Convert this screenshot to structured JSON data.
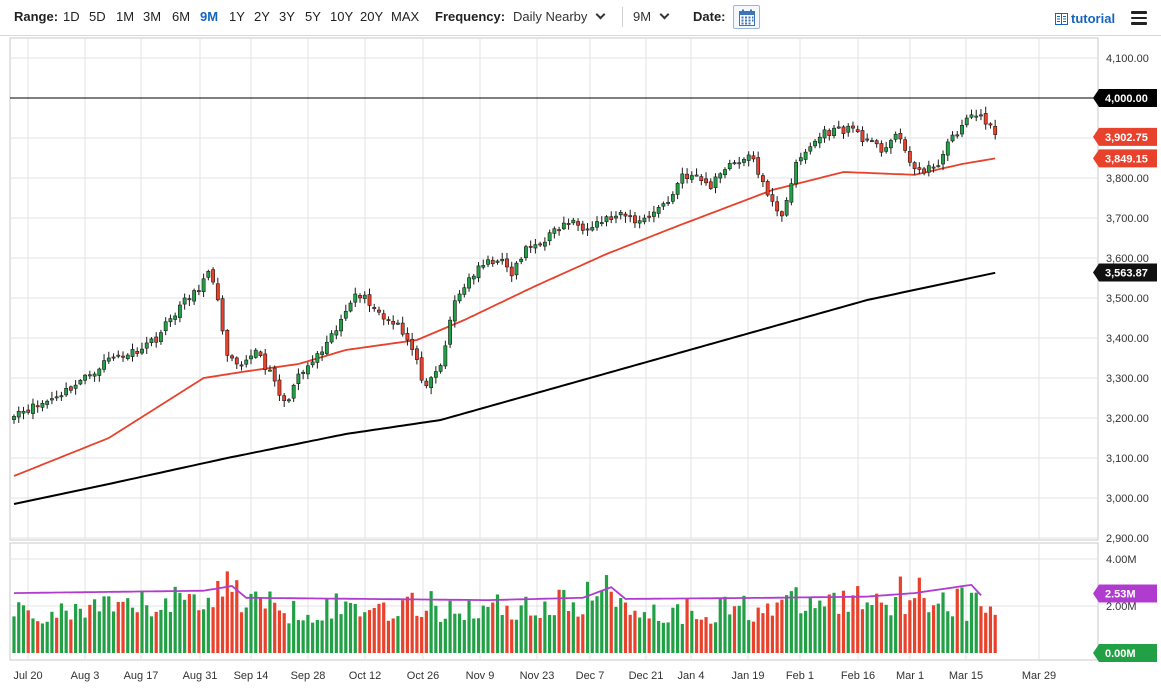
{
  "toolbar": {
    "range_label": "Range:",
    "ranges": [
      "1D",
      "5D",
      "1M",
      "3M",
      "6M",
      "9M",
      "1Y",
      "2Y",
      "3Y",
      "5Y",
      "10Y",
      "20Y",
      "MAX"
    ],
    "active_range": "9M",
    "frequency_label": "Frequency:",
    "frequency_value": "Daily Nearby",
    "period_value": "9M",
    "date_label": "Date:",
    "calendar_icon": "calendar-icon",
    "tutorial_label": "tutorial",
    "menu_icon": "hamburger-menu-icon"
  },
  "chart_data": [
    {
      "type": "candlestick",
      "y_ticks": [
        "4,100.00",
        "4,000.00",
        "3,900.00",
        "3,800.00",
        "3,700.00",
        "3,600.00",
        "3,500.00",
        "3,400.00",
        "3,300.00",
        "3,200.00",
        "3,100.00",
        "3,000.00",
        "2,900.00"
      ],
      "ylim": [
        2890,
        4120
      ],
      "x_ticks": [
        "Jul 20",
        "Aug 3",
        "Aug 17",
        "Aug 31",
        "Sep 14",
        "Sep 28",
        "Oct 12",
        "Oct 26",
        "Nov 9",
        "Nov 23",
        "Dec 7",
        "Dec 21",
        "Jan 4",
        "Jan 19",
        "Feb 1",
        "Feb 16",
        "Mar 1",
        "Mar 15",
        "Mar 29"
      ],
      "anchors": [
        {
          "bar": 0,
          "price": 3215
        },
        {
          "bar": 5,
          "price": 3230
        },
        {
          "bar": 10,
          "price": 3262
        },
        {
          "bar": 15,
          "price": 3300
        },
        {
          "bar": 20,
          "price": 3348
        },
        {
          "bar": 25,
          "price": 3365
        },
        {
          "bar": 30,
          "price": 3400
        },
        {
          "bar": 35,
          "price": 3480
        },
        {
          "bar": 38,
          "price": 3510
        },
        {
          "bar": 41,
          "price": 3560
        },
        {
          "bar": 43,
          "price": 3500
        },
        {
          "bar": 45,
          "price": 3350
        },
        {
          "bar": 48,
          "price": 3320
        },
        {
          "bar": 51,
          "price": 3375
        },
        {
          "bar": 54,
          "price": 3310
        },
        {
          "bar": 57,
          "price": 3235
        },
        {
          "bar": 60,
          "price": 3300
        },
        {
          "bar": 63,
          "price": 3340
        },
        {
          "bar": 66,
          "price": 3380
        },
        {
          "bar": 69,
          "price": 3440
        },
        {
          "bar": 72,
          "price": 3520
        },
        {
          "bar": 75,
          "price": 3490
        },
        {
          "bar": 78,
          "price": 3450
        },
        {
          "bar": 81,
          "price": 3440
        },
        {
          "bar": 84,
          "price": 3370
        },
        {
          "bar": 87,
          "price": 3270
        },
        {
          "bar": 90,
          "price": 3330
        },
        {
          "bar": 93,
          "price": 3490
        },
        {
          "bar": 96,
          "price": 3550
        },
        {
          "bar": 99,
          "price": 3580
        },
        {
          "bar": 102,
          "price": 3600
        },
        {
          "bar": 105,
          "price": 3560
        },
        {
          "bar": 108,
          "price": 3620
        },
        {
          "bar": 111,
          "price": 3640
        },
        {
          "bar": 114,
          "price": 3665
        },
        {
          "bar": 117,
          "price": 3690
        },
        {
          "bar": 120,
          "price": 3680
        },
        {
          "bar": 123,
          "price": 3690
        },
        {
          "bar": 126,
          "price": 3700
        },
        {
          "bar": 129,
          "price": 3705
        },
        {
          "bar": 132,
          "price": 3690
        },
        {
          "bar": 135,
          "price": 3720
        },
        {
          "bar": 138,
          "price": 3740
        },
        {
          "bar": 141,
          "price": 3810
        },
        {
          "bar": 144,
          "price": 3800
        },
        {
          "bar": 147,
          "price": 3780
        },
        {
          "bar": 150,
          "price": 3830
        },
        {
          "bar": 153,
          "price": 3845
        },
        {
          "bar": 156,
          "price": 3850
        },
        {
          "bar": 159,
          "price": 3750
        },
        {
          "bar": 162,
          "price": 3710
        },
        {
          "bar": 165,
          "price": 3830
        },
        {
          "bar": 168,
          "price": 3880
        },
        {
          "bar": 171,
          "price": 3915
        },
        {
          "bar": 174,
          "price": 3920
        },
        {
          "bar": 177,
          "price": 3925
        },
        {
          "bar": 180,
          "price": 3890
        },
        {
          "bar": 183,
          "price": 3870
        },
        {
          "bar": 186,
          "price": 3910
        },
        {
          "bar": 189,
          "price": 3840
        },
        {
          "bar": 192,
          "price": 3810
        },
        {
          "bar": 195,
          "price": 3840
        },
        {
          "bar": 198,
          "price": 3900
        },
        {
          "bar": 201,
          "price": 3945
        },
        {
          "bar": 204,
          "price": 3960
        },
        {
          "bar": 207,
          "price": 3905
        }
      ],
      "sma50": [
        {
          "bar": 0,
          "price": 3055
        },
        {
          "bar": 20,
          "price": 3150
        },
        {
          "bar": 40,
          "price": 3300
        },
        {
          "bar": 48,
          "price": 3315
        },
        {
          "bar": 60,
          "price": 3335
        },
        {
          "bar": 70,
          "price": 3370
        },
        {
          "bar": 85,
          "price": 3395
        },
        {
          "bar": 95,
          "price": 3445
        },
        {
          "bar": 110,
          "price": 3530
        },
        {
          "bar": 125,
          "price": 3610
        },
        {
          "bar": 140,
          "price": 3680
        },
        {
          "bar": 160,
          "price": 3770
        },
        {
          "bar": 175,
          "price": 3815
        },
        {
          "bar": 190,
          "price": 3808
        },
        {
          "bar": 200,
          "price": 3835
        },
        {
          "bar": 207,
          "price": 3849
        }
      ],
      "sma200": [
        {
          "bar": 0,
          "price": 2985
        },
        {
          "bar": 20,
          "price": 3035
        },
        {
          "bar": 45,
          "price": 3100
        },
        {
          "bar": 70,
          "price": 3160
        },
        {
          "bar": 90,
          "price": 3195
        },
        {
          "bar": 120,
          "price": 3295
        },
        {
          "bar": 150,
          "price": 3395
        },
        {
          "bar": 180,
          "price": 3495
        },
        {
          "bar": 207,
          "price": 3563
        }
      ],
      "sma50_color": "#e8412c",
      "sma200_color": "#000000",
      "up_color": "#22a046",
      "down_color": "#e8412c",
      "reference_line": {
        "value": 4000,
        "label": "4,000.00",
        "color": "#000000"
      },
      "price_tags": [
        {
          "label": "3,902.75",
          "value": 3902.75,
          "color": "#e8412c"
        },
        {
          "label": "3,849.15",
          "value": 3849.15,
          "color": "#e8412c"
        },
        {
          "label": "3,563.87",
          "value": 3563.87,
          "color": "#111111"
        }
      ]
    },
    {
      "type": "bar",
      "y_ticks": [
        "4.00M",
        "2.00M"
      ],
      "ylim": [
        0,
        4.2
      ],
      "volume_levels": [
        {
          "bar": 0,
          "v": 1.6
        },
        {
          "bar": 20,
          "v": 1.8
        },
        {
          "bar": 40,
          "v": 2.4
        },
        {
          "bar": 45,
          "v": 2.8
        },
        {
          "bar": 55,
          "v": 1.9
        },
        {
          "bar": 85,
          "v": 2.0
        },
        {
          "bar": 95,
          "v": 1.9
        },
        {
          "bar": 115,
          "v": 2.0
        },
        {
          "bar": 125,
          "v": 2.6
        },
        {
          "bar": 135,
          "v": 1.7
        },
        {
          "bar": 175,
          "v": 2.2
        },
        {
          "bar": 190,
          "v": 2.6
        },
        {
          "bar": 207,
          "v": 1.8
        }
      ],
      "avg_color": "#b03ccf",
      "avg_line": [
        {
          "bar": 0,
          "v": 2.55
        },
        {
          "bar": 40,
          "v": 2.65
        },
        {
          "bar": 46,
          "v": 2.85
        },
        {
          "bar": 49,
          "v": 2.35
        },
        {
          "bar": 100,
          "v": 2.25
        },
        {
          "bar": 120,
          "v": 2.35
        },
        {
          "bar": 126,
          "v": 2.8
        },
        {
          "bar": 129,
          "v": 2.3
        },
        {
          "bar": 160,
          "v": 2.35
        },
        {
          "bar": 180,
          "v": 2.4
        },
        {
          "bar": 190,
          "v": 2.55
        },
        {
          "bar": 202,
          "v": 2.9
        },
        {
          "bar": 204,
          "v": 2.45
        }
      ],
      "price_tags": [
        {
          "label": "2.53M",
          "value": 2.53,
          "color": "#b03ccf"
        },
        {
          "label": "0.00M",
          "value": 0.0,
          "color": "#22a046"
        }
      ]
    }
  ]
}
